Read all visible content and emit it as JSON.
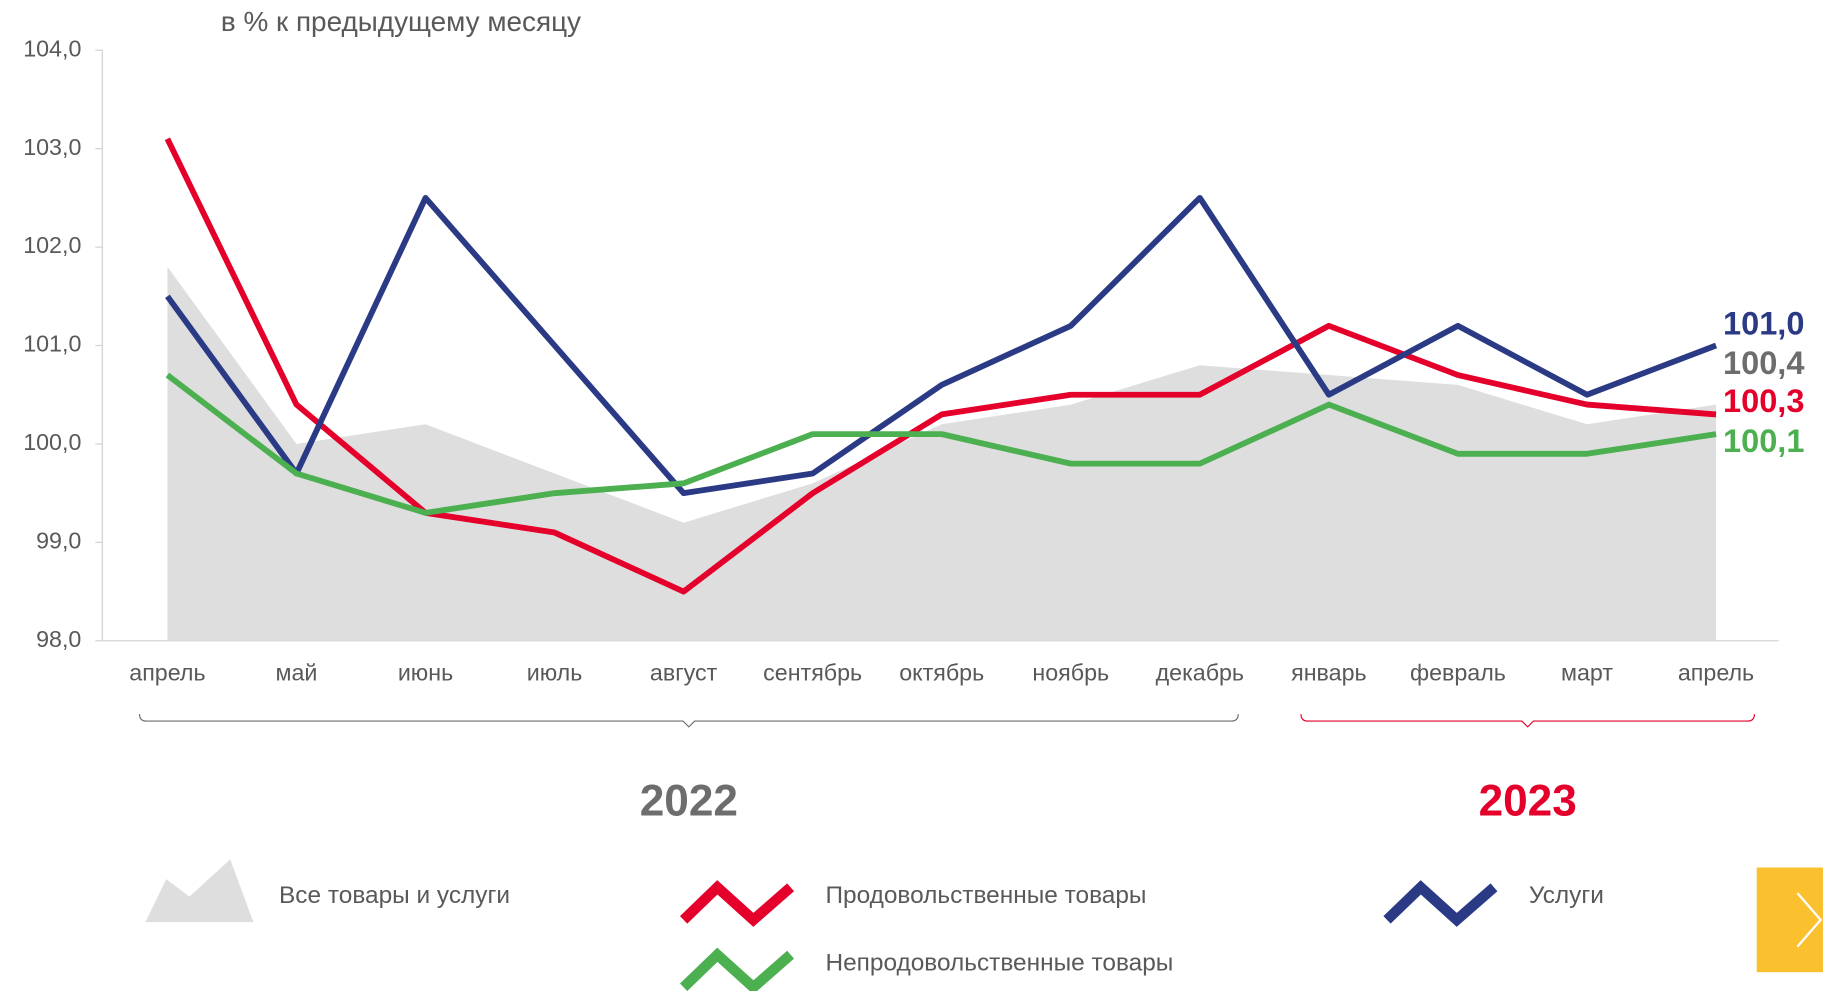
{
  "chart_data": {
    "type": "line",
    "subtitle": "в % к предыдущему месяцу",
    "categories": [
      "апрель",
      "май",
      "июнь",
      "июль",
      "август",
      "сентябрь",
      "октябрь",
      "ноябрь",
      "декабрь",
      "январь",
      "февраль",
      "март",
      "апрель"
    ],
    "groups": [
      {
        "label": "2022",
        "start": 0,
        "end": 8,
        "color": "#6d6d6d"
      },
      {
        "label": "2023",
        "start": 9,
        "end": 12,
        "color": "#e4002b"
      }
    ],
    "ylim": [
      98,
      104
    ],
    "yticks": [
      {
        "value": 98,
        "label": "98,0"
      },
      {
        "value": 99,
        "label": "99,0"
      },
      {
        "value": 100,
        "label": "100,0"
      },
      {
        "value": 101,
        "label": "101,0"
      },
      {
        "value": 102,
        "label": "102,0"
      },
      {
        "value": 103,
        "label": "103,0"
      },
      {
        "value": 104,
        "label": "104,0"
      }
    ],
    "series": [
      {
        "name": "Все товары и услуги",
        "kind": "area",
        "color": "#dedede",
        "label_color": "#6d6d6d",
        "values": [
          101.8,
          100.0,
          100.2,
          99.7,
          99.2,
          99.6,
          100.2,
          100.4,
          100.8,
          100.7,
          100.6,
          100.2,
          100.4
        ],
        "value_labels": [
          null,
          null,
          null,
          null,
          null,
          null,
          null,
          null,
          null,
          null,
          null,
          null,
          "100,4"
        ]
      },
      {
        "name": "Продовольственные товары",
        "kind": "line",
        "color": "#e4002b",
        "label_color": "#e4002b",
        "values": [
          103.1,
          100.4,
          99.3,
          99.1,
          98.5,
          99.5,
          100.3,
          100.5,
          100.5,
          101.2,
          100.7,
          100.4,
          100.3
        ],
        "value_labels": [
          null,
          null,
          null,
          null,
          null,
          null,
          null,
          null,
          null,
          null,
          null,
          null,
          "100,3"
        ]
      },
      {
        "name": "Услуги",
        "kind": "line",
        "color": "#2b3a85",
        "label_color": "#2b3a85",
        "values": [
          101.5,
          99.7,
          102.5,
          101.0,
          99.5,
          99.7,
          100.6,
          101.2,
          102.5,
          100.5,
          101.2,
          100.5,
          101.0
        ],
        "value_labels": [
          null,
          null,
          null,
          null,
          null,
          null,
          null,
          null,
          null,
          null,
          null,
          null,
          "101,0"
        ]
      },
      {
        "name": "Непродовольственные товары",
        "kind": "line",
        "color": "#4caf50",
        "label_color": "#4caf50",
        "values": [
          100.7,
          99.7,
          99.3,
          99.5,
          99.6,
          100.1,
          100.1,
          99.8,
          99.8,
          100.4,
          99.9,
          99.9,
          100.1
        ],
        "value_labels": [
          null,
          null,
          null,
          null,
          null,
          null,
          null,
          null,
          null,
          null,
          null,
          null,
          "100,1"
        ]
      }
    ]
  }
}
